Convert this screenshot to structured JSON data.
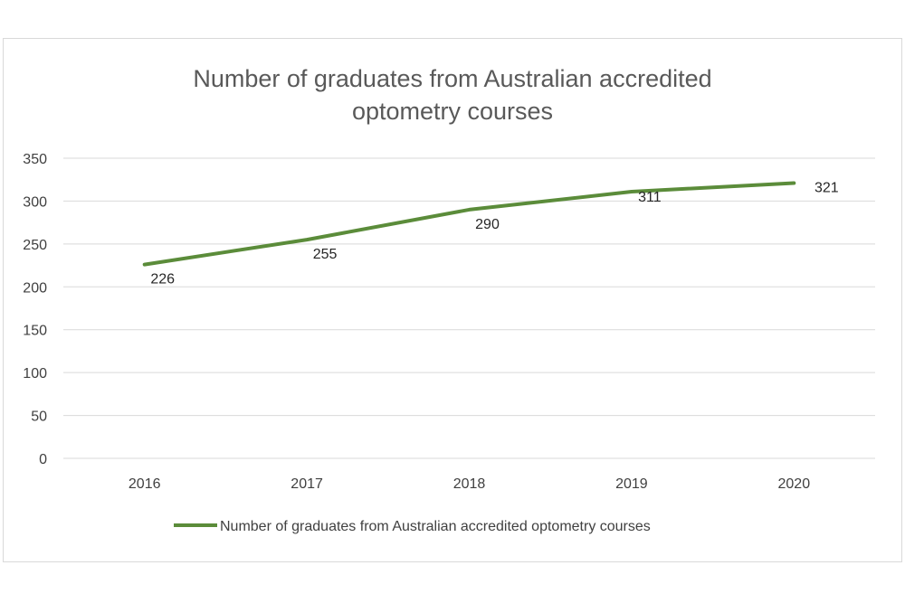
{
  "chart_data": {
    "type": "line",
    "title_lines": [
      "Number of graduates from Australian accredited",
      "optometry courses"
    ],
    "categories": [
      "2016",
      "2017",
      "2018",
      "2019",
      "2020"
    ],
    "series": [
      {
        "name": "Number of graduates from Australian accredited optometry courses",
        "values": [
          226,
          255,
          290,
          311,
          321
        ],
        "color": "#5b8c3a"
      }
    ],
    "ylim": [
      0,
      350
    ],
    "yticks": [
      0,
      50,
      100,
      150,
      200,
      250,
      300,
      350
    ],
    "ytick_labels": [
      "0",
      "50",
      "100",
      "150",
      "200",
      "250",
      "300",
      "350"
    ],
    "xlabel": "",
    "ylabel": "",
    "grid": true,
    "data_labels": [
      "226",
      "255",
      "290",
      "311",
      "321"
    ],
    "legend_position": "bottom"
  }
}
